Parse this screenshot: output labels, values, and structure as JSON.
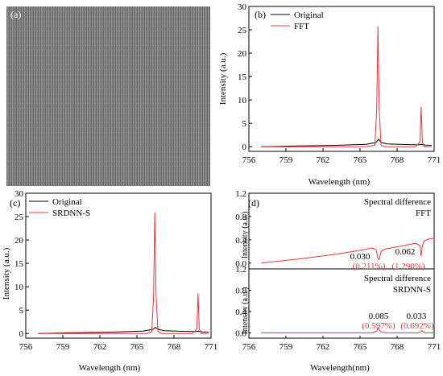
{
  "panel_a": {
    "label": "(a)",
    "colors": {
      "background": "#777777",
      "stripe_light": "#8f8f8f",
      "stripe_dark": "#6a6a6a"
    }
  },
  "colors": {
    "original": "#000000",
    "processed": "#e8373a",
    "annotation": "#e8373a"
  },
  "chart_data": [
    {
      "id": "b",
      "panel_label": "(b)",
      "type": "line",
      "xlabel": "Wavelength (nm)",
      "ylabel": "Intensity (a.u.)",
      "xlim": [
        756,
        771
      ],
      "ylim": [
        -1,
        30
      ],
      "xticks": [
        756,
        759,
        762,
        765,
        768,
        771
      ],
      "yticks": [
        0,
        5,
        10,
        15,
        20,
        25,
        30
      ],
      "legend_placement": "top-left",
      "series": [
        {
          "name": "Original",
          "color": "#000000",
          "x": [
            757,
            760,
            763,
            765.5,
            766.3,
            766.5,
            766.7,
            767.2,
            769.0,
            769.7,
            770.0,
            770.3,
            770.8
          ],
          "y": [
            0.0,
            0.15,
            0.3,
            0.5,
            0.9,
            1.6,
            0.9,
            0.6,
            0.45,
            0.4,
            0.5,
            0.35,
            0.3
          ]
        },
        {
          "name": "FFT",
          "color": "#e8373a",
          "x": [
            757,
            765.5,
            766.2,
            766.35,
            766.45,
            766.55,
            766.7,
            767.0,
            769.5,
            769.85,
            769.95,
            770.05,
            770.2,
            770.8
          ],
          "y": [
            0.0,
            0.0,
            0.3,
            8.0,
            25.7,
            8.0,
            0.3,
            0.0,
            0.0,
            1.0,
            8.5,
            1.0,
            0.0,
            0.0
          ]
        }
      ]
    },
    {
      "id": "c",
      "panel_label": "(c)",
      "type": "line",
      "xlabel": "Wavelength (nm)",
      "ylabel": "Intensity (a.u.)",
      "xlim": [
        756,
        771
      ],
      "ylim": [
        -1,
        30
      ],
      "xticks": [
        756,
        759,
        762,
        765,
        768,
        771
      ],
      "yticks": [
        0,
        5,
        10,
        15,
        20,
        25,
        30
      ],
      "ytick_labels": [
        "0",
        "5",
        "10",
        "15",
        "20",
        "25",
        "30"
      ],
      "legend_placement": "top-left",
      "series": [
        {
          "name": "Original",
          "color": "#000000",
          "x": [
            757,
            760,
            763,
            765.5,
            766.3,
            766.5,
            766.7,
            767.2,
            769.0,
            769.7,
            770.0,
            770.3,
            770.8
          ],
          "y": [
            0.0,
            0.15,
            0.3,
            0.5,
            0.9,
            1.3,
            0.9,
            0.6,
            0.45,
            0.4,
            0.5,
            0.35,
            0.3
          ]
        },
        {
          "name": "SRDNN-S",
          "color": "#e8373a",
          "x": [
            757,
            765.8,
            766.2,
            766.35,
            766.45,
            766.55,
            766.7,
            767.0,
            769.5,
            769.85,
            769.95,
            770.05,
            770.2,
            770.8
          ],
          "y": [
            0.0,
            0.0,
            0.4,
            8.0,
            25.9,
            8.0,
            0.4,
            0.0,
            0.0,
            1.0,
            8.6,
            1.0,
            0.0,
            0.0
          ]
        }
      ]
    },
    {
      "id": "d_top",
      "panel_label": "(d)",
      "type": "line",
      "ylabel": "Intensity (a.u.)",
      "xlim": [
        756,
        771
      ],
      "ylim": [
        -0.1,
        1.2
      ],
      "yticks": [
        0.0,
        0.4,
        0.8,
        1.2
      ],
      "ytick_labels": [
        "0.0",
        "0.4",
        "0.8",
        "1.2"
      ],
      "legend_text": [
        "Spectral difference",
        "FFT"
      ],
      "annotations": [
        {
          "value_text": "0.030",
          "pct_text": "(0.211%)",
          "x": 766.5
        },
        {
          "value_text": "0.062",
          "pct_text": "(1.290%)",
          "x": 770.0
        }
      ],
      "series": [
        {
          "name": "FFT",
          "color": "#e8373a",
          "x": [
            757,
            760,
            763,
            765.0,
            766.0,
            766.3,
            766.45,
            766.55,
            766.7,
            767.0,
            768.0,
            769.5,
            769.85,
            769.95,
            770.05,
            770.2,
            770.5,
            771
          ],
          "y": [
            0.0,
            0.07,
            0.15,
            0.22,
            0.26,
            0.23,
            0.08,
            0.06,
            0.2,
            0.24,
            0.28,
            0.34,
            0.3,
            0.12,
            0.3,
            0.38,
            0.41,
            0.43
          ]
        }
      ]
    },
    {
      "id": "d_bottom",
      "type": "line",
      "xlabel": "Wavelength(nm)",
      "ylabel": "Intensity (a.u.)",
      "xlim": [
        756,
        771
      ],
      "ylim": [
        -0.1,
        1.2
      ],
      "xticks": [
        756,
        759,
        762,
        765,
        768,
        771
      ],
      "yticks": [
        0.0,
        0.4,
        0.8,
        1.2
      ],
      "ytick_labels": [
        "0.0",
        "0.4",
        "0.8",
        "1.2"
      ],
      "legend_text": [
        "Spectral difference",
        "SRDNN-S"
      ],
      "annotations": [
        {
          "value_text": "0.085",
          "pct_text": "(0.597%)",
          "x": 766.5
        },
        {
          "value_text": "0.033",
          "pct_text": "(0.692%)",
          "x": 770.0
        }
      ],
      "series": [
        {
          "name": "SRDNN-S",
          "color": "#e8373a",
          "x": [
            757,
            766.0,
            766.35,
            766.45,
            766.55,
            766.7,
            767.2,
            769.7,
            769.9,
            770.0,
            770.1,
            770.3,
            771
          ],
          "y": [
            0.0,
            0.0,
            0.03,
            0.1,
            0.06,
            0.01,
            0.0,
            0.0,
            0.02,
            0.04,
            0.02,
            0.0,
            0.0
          ]
        }
      ]
    }
  ]
}
